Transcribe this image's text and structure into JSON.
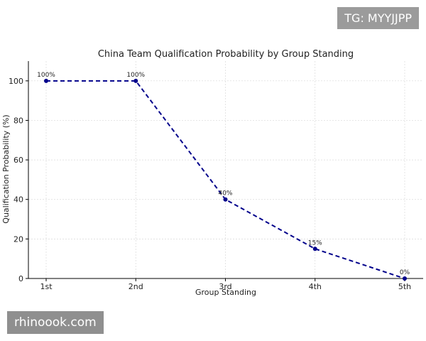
{
  "watermarks": {
    "top_right": "TG: MYYJJPP",
    "bottom_left": "rhinoook.com"
  },
  "chart_data": {
    "type": "line",
    "title": "China Team Qualification Probability by Group Standing",
    "xlabel": "Group Standing",
    "ylabel": "Qualification Probability (%)",
    "categories": [
      "1st",
      "2nd",
      "3rd",
      "4th",
      "5th"
    ],
    "series": [
      {
        "values": [
          100,
          100,
          40,
          15,
          0
        ]
      }
    ],
    "data_labels": [
      "100%",
      "100%",
      "40%",
      "15%",
      "0%"
    ],
    "ylim": [
      0,
      110
    ],
    "yticks": [
      0,
      20,
      40,
      60,
      80,
      100
    ],
    "grid": true,
    "line_style": "dashed",
    "colors": {
      "line": "#00008b",
      "grid": "#d9d9d9",
      "axis": "#000000"
    }
  }
}
